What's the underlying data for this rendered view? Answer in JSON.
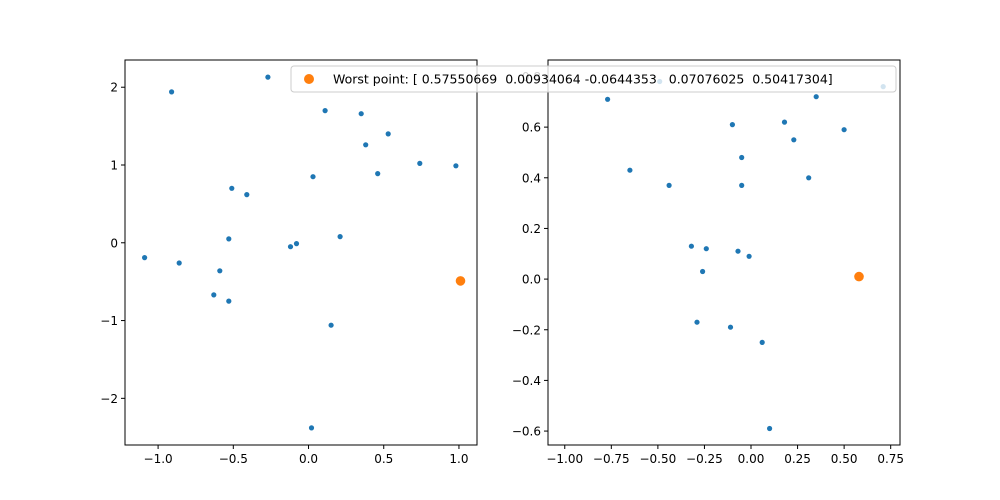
{
  "chart_data": [
    {
      "type": "scatter",
      "xlim": [
        -1.22,
        1.12
      ],
      "ylim": [
        -2.6,
        2.35
      ],
      "xticks": [
        -1.0,
        -0.5,
        0.0,
        0.5,
        1.0
      ],
      "yticks": [
        -2,
        -1,
        0,
        1,
        2
      ],
      "xtick_labels": [
        "−1.0",
        "−0.5",
        "0.0",
        "0.5",
        "1.0"
      ],
      "ytick_labels": [
        "−2",
        "−1",
        "0",
        "1",
        "2"
      ],
      "grid": false,
      "series": [
        {
          "color": "#1f77b4",
          "points": [
            [
              -0.27,
              2.13
            ],
            [
              -0.91,
              1.94
            ],
            [
              0.11,
              1.7
            ],
            [
              0.35,
              1.66
            ],
            [
              0.53,
              1.4
            ],
            [
              0.38,
              1.26
            ],
            [
              0.74,
              1.02
            ],
            [
              0.98,
              0.99
            ],
            [
              0.46,
              0.89
            ],
            [
              0.03,
              0.85
            ],
            [
              -0.51,
              0.7
            ],
            [
              -0.41,
              0.62
            ],
            [
              0.21,
              0.08
            ],
            [
              -0.53,
              0.05
            ],
            [
              -0.08,
              -0.01
            ],
            [
              -0.12,
              -0.05
            ],
            [
              -1.09,
              -0.19
            ],
            [
              -0.86,
              -0.26
            ],
            [
              -0.59,
              -0.36
            ],
            [
              -0.63,
              -0.67
            ],
            [
              -0.53,
              -0.75
            ],
            [
              0.15,
              -1.06
            ],
            [
              0.02,
              -2.38
            ]
          ]
        },
        {
          "name": "Worst point: [ 0.57550669  0.00934064 -0.0644353   0.07076025  0.50417304]",
          "color": "#ff7f0e",
          "points": [
            [
              1.01,
              -0.49
            ]
          ]
        }
      ]
    },
    {
      "type": "scatter",
      "xlim": [
        -1.09,
        0.8
      ],
      "ylim": [
        -0.655,
        0.865
      ],
      "xticks": [
        -1.0,
        -0.75,
        -0.5,
        -0.25,
        0.0,
        0.25,
        0.5,
        0.75
      ],
      "yticks": [
        -0.6,
        -0.4,
        -0.2,
        0.0,
        0.2,
        0.4,
        0.6,
        0.8
      ],
      "xtick_labels": [
        "−1.00",
        "−0.75",
        "−0.50",
        "−0.25",
        "0.00",
        "0.25",
        "0.50",
        "0.75"
      ],
      "ytick_labels": [
        "−0.6",
        "−0.4",
        "−0.2",
        "0.0",
        "0.2",
        "0.4",
        "0.6",
        "0.8"
      ],
      "grid": false,
      "legend": "top-right",
      "series": [
        {
          "color": "#1f77b4",
          "points": [
            [
              -0.49,
              0.78
            ],
            [
              -0.77,
              0.71
            ],
            [
              0.71,
              0.76
            ],
            [
              0.35,
              0.72
            ],
            [
              0.18,
              0.62
            ],
            [
              -0.1,
              0.61
            ],
            [
              0.5,
              0.59
            ],
            [
              0.23,
              0.55
            ],
            [
              -0.05,
              0.48
            ],
            [
              -0.65,
              0.43
            ],
            [
              0.31,
              0.4
            ],
            [
              -0.44,
              0.37
            ],
            [
              -0.05,
              0.37
            ],
            [
              -0.32,
              0.13
            ],
            [
              -0.24,
              0.12
            ],
            [
              -0.07,
              0.11
            ],
            [
              -0.01,
              0.09
            ],
            [
              -0.26,
              0.03
            ],
            [
              -0.29,
              -0.17
            ],
            [
              -0.11,
              -0.19
            ],
            [
              0.06,
              -0.25
            ],
            [
              0.1,
              -0.59
            ]
          ]
        },
        {
          "color": "#ff7f0e",
          "points": [
            [
              0.58,
              0.01
            ]
          ]
        }
      ]
    }
  ]
}
